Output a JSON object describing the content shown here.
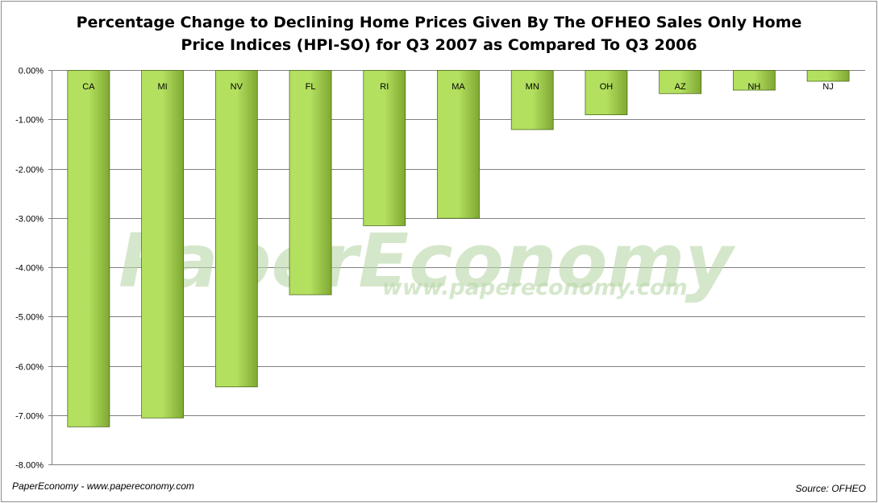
{
  "title_line1": "Percentage Change to Declining Home Prices Given By The OFHEO Sales Only Home",
  "title_line2": "Price Indices (HPI-SO) for Q3 2007 as Compared To Q3 2006",
  "footer_left": "PaperEconomy - www.papereconomy.com",
  "footer_right": "Source: OFHEO",
  "watermark": {
    "name": "PaperEconomy",
    "url": "www.papereconomy.com"
  },
  "colors": {
    "bar_light": "#b3e05f",
    "bar_dark": "#7fa832",
    "bar_stroke": "#4e6b1d",
    "grid": "#808080"
  },
  "chart_data": {
    "type": "bar",
    "title": "Percentage Change to Declining Home Prices Given By The OFHEO Sales Only Home Price Indices (HPI-SO) for Q3 2007 as Compared To Q3 2006",
    "categories": [
      "CA",
      "MI",
      "NV",
      "FL",
      "RI",
      "MA",
      "MN",
      "OH",
      "AZ",
      "NH",
      "NJ"
    ],
    "values": [
      -7.23,
      -7.05,
      -6.42,
      -4.55,
      -3.15,
      -3.0,
      -1.2,
      -0.9,
      -0.47,
      -0.4,
      -0.22
    ],
    "ylim": [
      -8.0,
      0.0
    ],
    "yticks": [
      0,
      -1,
      -2,
      -3,
      -4,
      -5,
      -6,
      -7,
      -8
    ],
    "ytick_labels": [
      "0.00%",
      "-1.00%",
      "-2.00%",
      "-3.00%",
      "-4.00%",
      "-5.00%",
      "-6.00%",
      "-7.00%",
      "-8.00%"
    ],
    "grid": true,
    "legend": "none"
  }
}
